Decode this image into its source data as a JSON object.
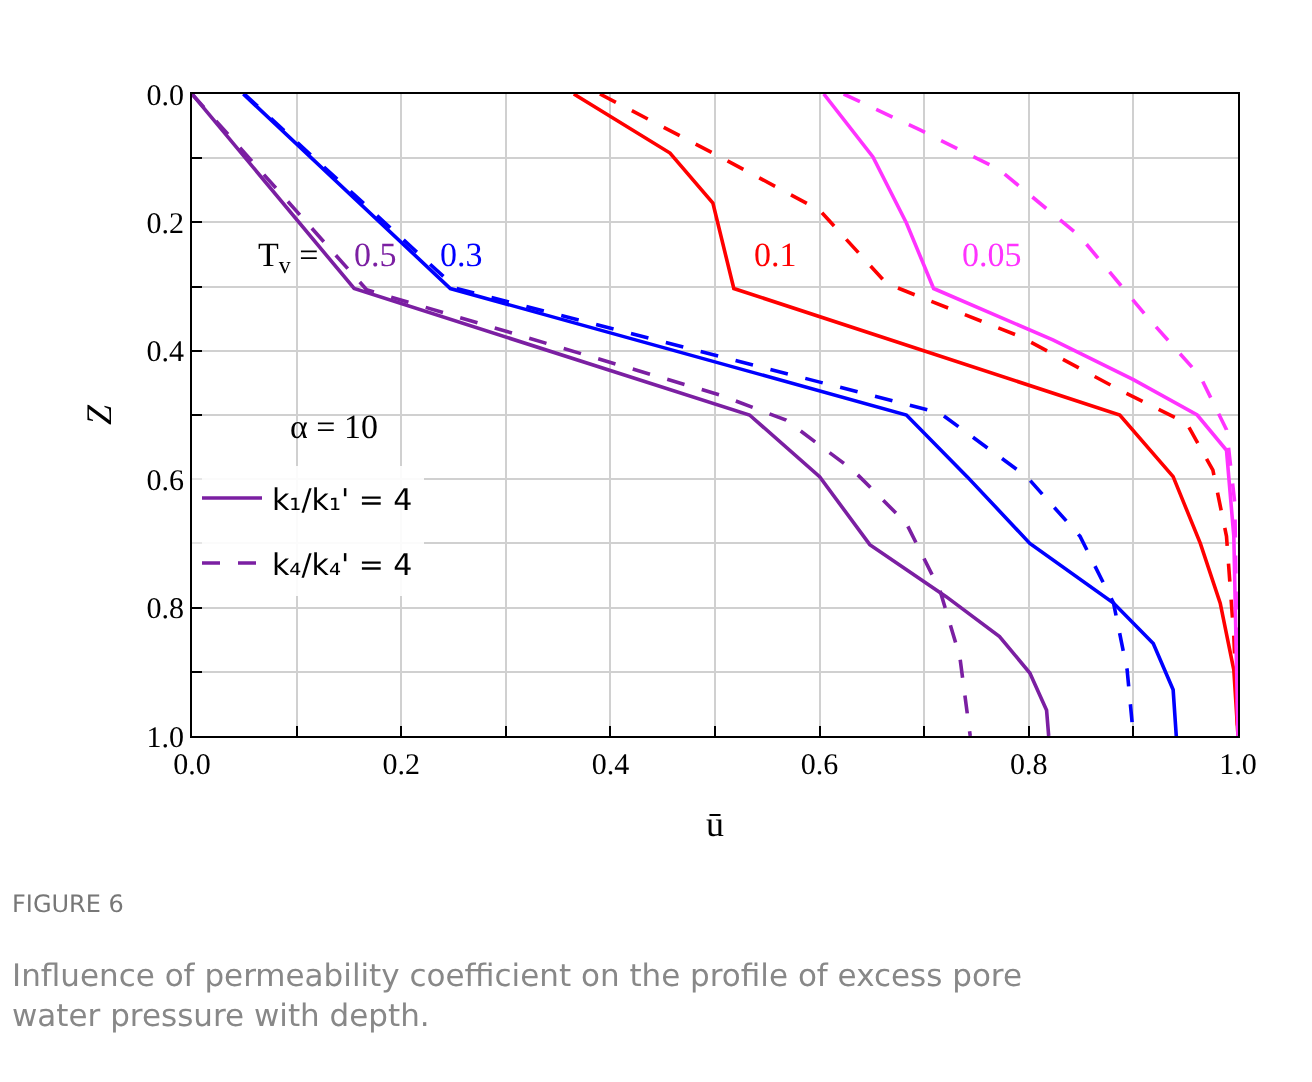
{
  "chart_data": {
    "type": "line",
    "xlabel": "ū",
    "ylabel": "Z",
    "xlim": [
      0,
      1
    ],
    "ylim": [
      1,
      0
    ],
    "xticks": [
      {
        "value": 0,
        "label": "0.0"
      },
      {
        "value": 0.1,
        "label": null
      },
      0.2,
      {
        "value": 0.3,
        "label": null
      },
      0.4,
      {
        "value": 0.5,
        "label": null
      },
      0.6,
      {
        "value": 0.7,
        "label": null
      },
      0.8,
      {
        "value": 0.9,
        "label": null
      },
      {
        "value": 1,
        "label": "1.0"
      }
    ],
    "yticks": [
      {
        "value": 0,
        "label": "0.0"
      },
      {
        "value": 0.1,
        "label": null
      },
      0.2,
      {
        "value": 0.3,
        "label": null
      },
      0.4,
      {
        "value": 0.5,
        "label": null
      },
      0.6,
      {
        "value": 0.7,
        "label": null
      },
      0.8,
      {
        "value": 0.9,
        "label": null
      },
      {
        "value": 1,
        "label": "1.0"
      }
    ],
    "grid": true,
    "legend": "left",
    "series": [
      {
        "name": "k₁/k₁' = 4",
        "color": "#7b1fa2",
        "line_style": "solid",
        "x": [
          0,
          0.155,
          0.533,
          0.6,
          0.648,
          0.721,
          0.772,
          0.801,
          0.817,
          0.819
        ],
        "values": [
          0,
          0.303,
          0.5,
          0.596,
          0.702,
          0.783,
          0.845,
          0.902,
          0.96,
          1.0
        ]
      },
      {
        "name": "k₄/k₄' = 4",
        "color": "#7b1fa2",
        "line_style": "dashed",
        "x": [
          0,
          0.167,
          0.505,
          0.568,
          0.632,
          0.683,
          0.715,
          0.734,
          0.744
        ],
        "values": [
          0,
          0.305,
          0.469,
          0.508,
          0.586,
          0.669,
          0.773,
          0.876,
          1.0
        ]
      },
      {
        "color": "#0000ff",
        "line_style": "solid",
        "x": [
          0.049,
          0.247,
          0.683,
          0.741,
          0.801,
          0.881,
          0.919,
          0.938,
          0.941
        ],
        "values": [
          0,
          0.303,
          0.5,
          0.596,
          0.7,
          0.793,
          0.856,
          0.928,
          1.0
        ]
      },
      {
        "color": "#0000ff",
        "line_style": "dashed",
        "x": [
          0.05,
          0.253,
          0.715,
          0.798,
          0.849,
          0.881,
          0.894,
          0.9
        ],
        "values": [
          0,
          0.303,
          0.497,
          0.596,
          0.689,
          0.793,
          0.897,
          1.0
        ]
      },
      {
        "color": "#ff0000",
        "line_style": "solid",
        "x": [
          0.365,
          0.457,
          0.498,
          0.518,
          0.887,
          0.938,
          0.964,
          0.983,
          0.996,
          1.0
        ],
        "values": [
          0,
          0.092,
          0.17,
          0.303,
          0.5,
          0.596,
          0.7,
          0.793,
          0.897,
          1.0
        ]
      },
      {
        "color": "#ff0000",
        "line_style": "dashed",
        "x": [
          0.39,
          0.505,
          0.6,
          0.664,
          0.696,
          0.792,
          0.887,
          0.951,
          0.976,
          0.989,
          0.996,
          1.0
        ],
        "values": [
          0,
          0.098,
          0.181,
          0.295,
          0.316,
          0.378,
          0.461,
          0.513,
          0.586,
          0.689,
          0.845,
          1.0
        ]
      },
      {
        "color": "#ff33ff",
        "line_style": "solid",
        "x": [
          0.604,
          0.651,
          0.683,
          0.709,
          0.823,
          0.9,
          0.961,
          0.989,
          0.996,
          1.0
        ],
        "values": [
          0,
          0.098,
          0.201,
          0.303,
          0.383,
          0.445,
          0.5,
          0.555,
          0.689,
          1.0
        ]
      },
      {
        "color": "#ff33ff",
        "line_style": "dashed",
        "x": [
          0.623,
          0.696,
          0.772,
          0.849,
          0.913,
          0.964,
          0.989,
          0.997,
          1.0
        ],
        "values": [
          0,
          0.056,
          0.118,
          0.222,
          0.347,
          0.44,
          0.523,
          0.638,
          1.0
        ]
      }
    ],
    "annotations": [
      "T$_{v}$ =",
      "0.5",
      "0.3",
      "0.1",
      "0.05",
      "α = 10",
      "FIGURE 6",
      "Influence of permeability coefficient on the profile of excess pore water pressure with depth."
    ]
  }
}
